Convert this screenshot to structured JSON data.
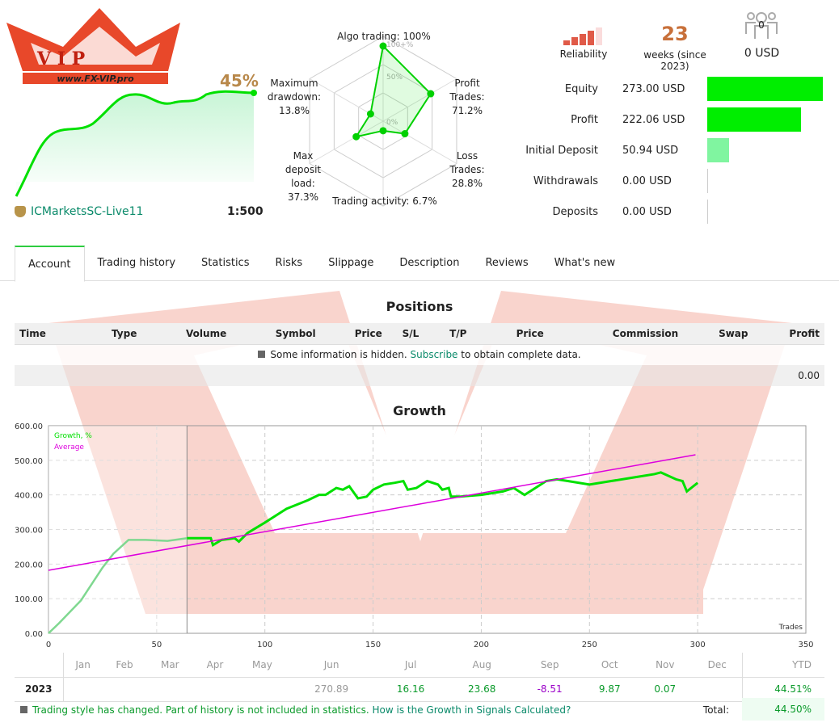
{
  "logo": {
    "text": "www.FX-VIP.pro",
    "letters": "VIP"
  },
  "summary": {
    "growth_pct": "45%",
    "server": "ICMarketsSC-Live11",
    "leverage": "1:500"
  },
  "radar": [
    {
      "label": "Algo trading: 100%",
      "value": 100
    },
    {
      "label": "Profit Trades: 71.2%",
      "value": 71.2
    },
    {
      "label": "Loss Trades: 28.8%",
      "value": 28.8
    },
    {
      "label": "Trading activity: 6.7%",
      "value": 6.7
    },
    {
      "label": "Max deposit load: 37.3%",
      "value": 37.3
    },
    {
      "label": "Maximum drawdown: 13.8%",
      "value": 13.8
    }
  ],
  "radar_ticks": [
    "100+%",
    "50%",
    "0%"
  ],
  "header": {
    "reliability_label": "Reliability",
    "reliability_level": 4,
    "weeks": "23",
    "weeks_label": "weeks (since 2023)",
    "subscribers": "0",
    "subscribers_usd": "0 USD"
  },
  "stats": [
    {
      "label": "Equity",
      "value": "273.00 USD",
      "bar": 273,
      "color": "#00ee00"
    },
    {
      "label": "Profit",
      "value": "222.06 USD",
      "bar": 222.06,
      "color": "#00ee00"
    },
    {
      "label": "Initial Deposit",
      "value": "50.94 USD",
      "bar": 50.94,
      "color": "#80f5a0"
    },
    {
      "label": "Withdrawals",
      "value": "0.00 USD",
      "bar": 0,
      "color": "#00ee00"
    },
    {
      "label": "Deposits",
      "value": "0.00 USD",
      "bar": 0,
      "color": "#00ee00"
    }
  ],
  "tabs": [
    "Account",
    "Trading history",
    "Statistics",
    "Risks",
    "Slippage",
    "Description",
    "Reviews",
    "What's new"
  ],
  "positions": {
    "title": "Positions",
    "columns": [
      "Time",
      "Type",
      "Volume",
      "Symbol",
      "Price",
      "S/L",
      "T/P",
      "Price",
      "Commission",
      "Swap",
      "Profit"
    ],
    "hidden_text": "Some information is hidden.",
    "subscribe_link": "Subscribe",
    "hidden_suffix": "to obtain complete data.",
    "total": "0.00"
  },
  "growth": {
    "title": "Growth",
    "months": [
      "Jan",
      "Feb",
      "Mar",
      "Apr",
      "May",
      "Jun",
      "Jul",
      "Aug",
      "Sep",
      "Oct",
      "Nov",
      "Dec"
    ],
    "ytd_label": "YTD",
    "year": "2023",
    "values": [
      "",
      "",
      "",
      "",
      "",
      "270.89",
      "16.16",
      "23.68",
      "-8.51",
      "9.87",
      "0.07",
      ""
    ],
    "ytd": "44.51%",
    "note": "Trading style has changed. Part of history is not included in statistics.",
    "note_link": "How is the Growth in Signals Calculated?",
    "total_label": "Total:",
    "total": "44.50%"
  },
  "chart_data": {
    "type": "line",
    "xlabel": "Trades",
    "xlim": [
      0,
      350
    ],
    "ylim": [
      0,
      600
    ],
    "xticks": [
      "0",
      "50",
      "100",
      "150",
      "200",
      "250",
      "300",
      "350"
    ],
    "yticks": [
      "0.00",
      "100.00",
      "200.00",
      "300.00",
      "400.00",
      "500.00",
      "600.00"
    ],
    "grid": true,
    "legend": "top-left",
    "history_cutoff_x": 64,
    "series": [
      {
        "name": "Growth, %",
        "color": "#00e000",
        "x": [
          0,
          5,
          15,
          25,
          30,
          37,
          45,
          55,
          64,
          75,
          76,
          80,
          86,
          88,
          92,
          100,
          110,
          120,
          125,
          128,
          133,
          136,
          139,
          143,
          147,
          150,
          155,
          160,
          164,
          166,
          170,
          175,
          180,
          182,
          185,
          186,
          190,
          200,
          210,
          215,
          220,
          225,
          230,
          235,
          240,
          250,
          260,
          270,
          280,
          283,
          290,
          293,
          295,
          298,
          300
        ],
        "y": [
          0,
          30,
          95,
          190,
          230,
          270,
          270,
          267,
          275,
          275,
          255,
          270,
          275,
          265,
          290,
          320,
          360,
          385,
          400,
          400,
          420,
          415,
          425,
          390,
          395,
          415,
          430,
          435,
          440,
          415,
          420,
          440,
          430,
          415,
          420,
          395,
          395,
          400,
          410,
          420,
          400,
          420,
          440,
          445,
          440,
          430,
          440,
          450,
          460,
          465,
          445,
          440,
          410,
          425,
          435
        ]
      },
      {
        "name": "Average",
        "color": "#dd00dd",
        "x": [
          0,
          299
        ],
        "y": [
          182,
          516
        ]
      }
    ]
  }
}
